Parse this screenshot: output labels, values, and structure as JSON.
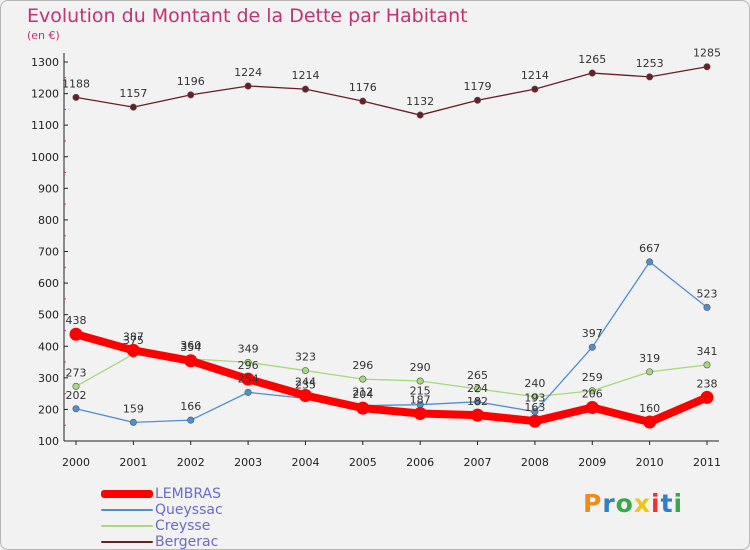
{
  "title": "Evolution du Montant de la Dette par Habitant",
  "unit": "(en €)",
  "logo": {
    "text": "Proxiti",
    "letters": [
      "P",
      "r",
      "o",
      "x",
      "i",
      "t",
      "i"
    ],
    "colors": [
      "#f08a1c",
      "#2f7fc9",
      "#39a84a",
      "#f0c419",
      "#e8342e",
      "#2f7fc9",
      "#39a84a"
    ]
  },
  "chart_data": {
    "type": "line",
    "categories": [
      "2000",
      "2001",
      "2002",
      "2003",
      "2004",
      "2005",
      "2006",
      "2007",
      "2008",
      "2009",
      "2010",
      "2011"
    ],
    "ylim": [
      100,
      1300
    ],
    "yticks": [
      100,
      200,
      300,
      400,
      500,
      600,
      700,
      800,
      900,
      1000,
      1100,
      1200,
      1300
    ],
    "grid": false,
    "legend_position": "bottom-left",
    "series": [
      {
        "name": "LEMBRAS",
        "color": "#ff0000",
        "values": [
          438,
          387,
          354,
          296,
          244,
          204,
          187,
          182,
          163,
          206,
          160,
          238
        ]
      },
      {
        "name": "Queyssac",
        "color": "#4f8ed0",
        "values": [
          202,
          159,
          166,
          254,
          235,
          212,
          215,
          224,
          193,
          397,
          667,
          523
        ]
      },
      {
        "name": "Creysse",
        "color": "#a4da7c",
        "values": [
          273,
          375,
          360,
          349,
          323,
          296,
          290,
          265,
          240,
          259,
          319,
          341
        ]
      },
      {
        "name": "Bergerac",
        "color": "#6a1e26",
        "values": [
          1188,
          1157,
          1196,
          1224,
          1214,
          1176,
          1132,
          1179,
          1214,
          1265,
          1253,
          1285
        ]
      }
    ]
  }
}
